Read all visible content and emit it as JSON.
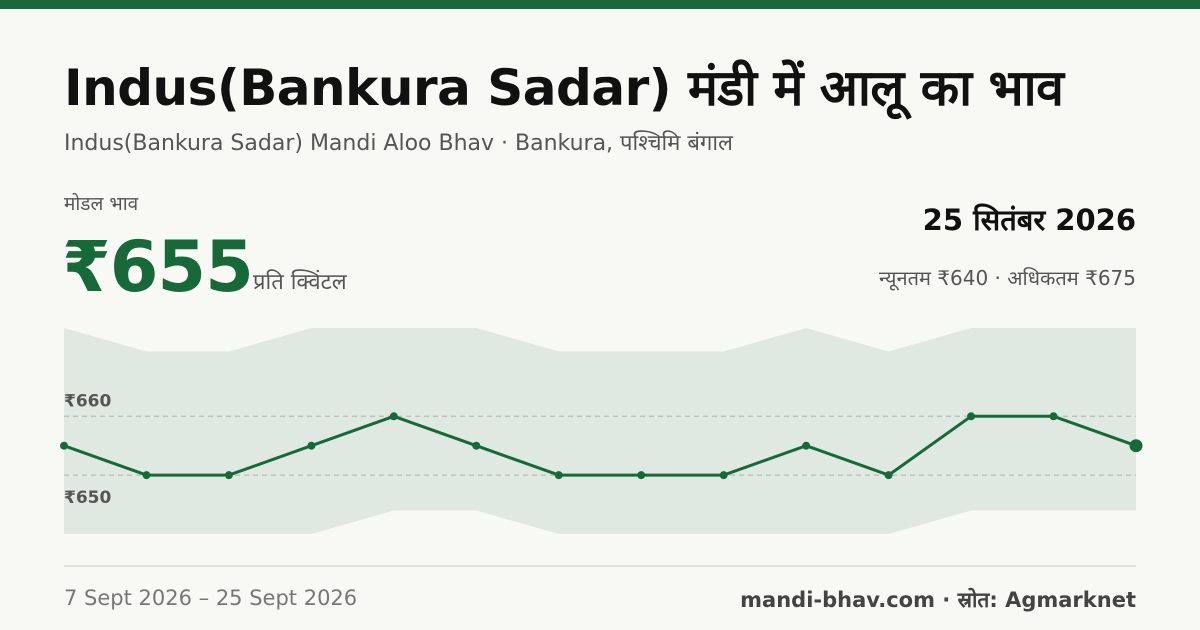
{
  "header": {
    "title": "Indus(Bankura Sadar) मंडी में आलू का भाव",
    "subtitle": "Indus(Bankura Sadar) Mandi Aloo Bhav · Bankura, पश्चिमि बंगाल"
  },
  "price": {
    "label": "मोडल भाव",
    "value": "₹655",
    "unit": "प्रति क्विंटल"
  },
  "date": "25 सितंबर 2026",
  "range": "न्यूनतम ₹640 · अधिकतम ₹675",
  "footer": {
    "period": "7 Sept 2026 – 25 Sept 2026",
    "source": "mandi-bhav.com · स्रोत: Agmarknet"
  },
  "colors": {
    "accent": "#17693a",
    "band": "#dfe9e1",
    "background": "#f8f8f4"
  },
  "chart_data": {
    "type": "line",
    "x_labels": [],
    "series": [
      {
        "values": [
          655,
          650,
          650,
          655,
          660,
          655,
          650,
          650,
          650,
          655,
          650,
          660,
          660,
          655
        ]
      }
    ],
    "band": {
      "upper": [
        675,
        671,
        671,
        675,
        675,
        675,
        671,
        671,
        671,
        675,
        671,
        675,
        675,
        675
      ],
      "lower": [
        640,
        640,
        640,
        640,
        644,
        644,
        640,
        640,
        640,
        640,
        640,
        644,
        644,
        644
      ]
    },
    "y_ticks": [
      {
        "value": 660,
        "label": "₹660"
      },
      {
        "value": 650,
        "label": "₹650"
      }
    ],
    "ylim": [
      640,
      675
    ],
    "grid": "dashed horizontal lines at tick values",
    "last_point_highlight": true
  }
}
